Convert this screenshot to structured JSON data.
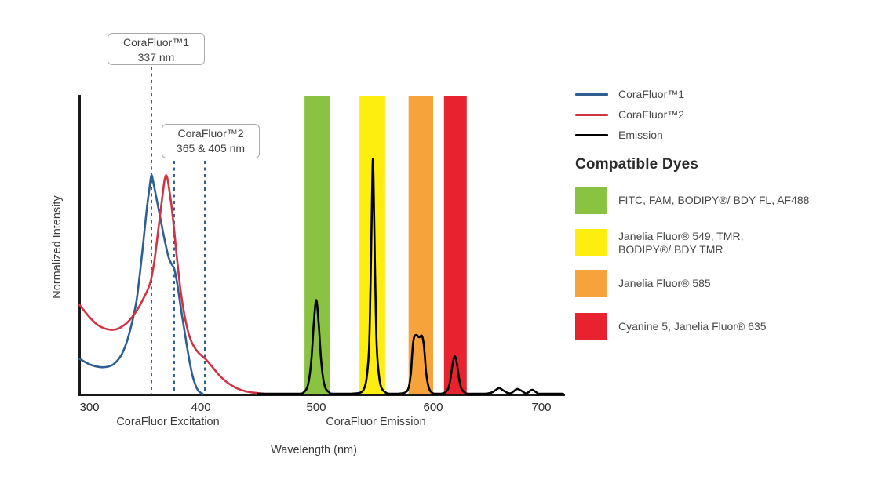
{
  "callouts": [
    {
      "line1": "CoraFluor™1",
      "line2": "337 nm"
    },
    {
      "line1": "CoraFluor™2",
      "line2": "365 & 405 nm"
    }
  ],
  "axis": {
    "y_label": "Normalized Intensity",
    "x_label": "Wavelength (nm)",
    "excitation_caption": "CoraFluor Excitation",
    "emission_caption": "CoraFluor Emission"
  },
  "legend": {
    "items": [
      {
        "label": "CoraFluor™1",
        "color": "#2e5f90"
      },
      {
        "label": "CoraFluor™2",
        "color": "#cf3344"
      },
      {
        "label": "Emission",
        "color": "#000000"
      }
    ]
  },
  "compatible_dyes": {
    "heading": "Compatible Dyes",
    "items": [
      {
        "color": "#8ac341",
        "line1": "FITC, FAM, BODIPY®/ BDY FL, AF488",
        "line2": ""
      },
      {
        "color": "#fdee10",
        "line1": "Janelia Fluor® 549, TMR,",
        "line2": "BODIPY®/ BDY TMR"
      },
      {
        "color": "#f7a33c",
        "line1": "Janelia Fluor® 585",
        "line2": ""
      },
      {
        "color": "#e8222e",
        "line1": "Cyanine 5, Janelia Fluor® 635",
        "line2": ""
      }
    ]
  },
  "chart_data": {
    "type": "line",
    "title": "CoraFluor excitation and emission spectra with compatible dye windows",
    "xlabel": "Wavelength (nm)",
    "ylabel": "Normalized Intensity",
    "x_ticks": [
      300,
      400,
      500,
      600,
      700
    ],
    "x_range_nm": [
      294,
      721
    ],
    "y_range": [
      0,
      1
    ],
    "grid": false,
    "legend_position": "right",
    "marker_lines": [
      {
        "nm": 337,
        "label": "CoraFluor™1 337 nm"
      },
      {
        "nm": 365,
        "label": "CoraFluor™2 365 nm"
      },
      {
        "nm": 405,
        "label": "CoraFluor™2 405 nm"
      }
    ],
    "marker_color": "#34628f",
    "bands": [
      {
        "name": "FITC, FAM, BODIPY/ BDY FL, AF488 window",
        "nm": [
          490,
          512
        ],
        "color": "#8ac341"
      },
      {
        "name": "Janelia Fluor 549, TMR, BODIPY/ BDY TMR window",
        "nm": [
          537,
          559
        ],
        "color": "#fdee10"
      },
      {
        "name": "Janelia Fluor 585 window",
        "nm": [
          579,
          600
        ],
        "color": "#f7a33c"
      },
      {
        "name": "Cyanine 5, Janelia Fluor 635 window",
        "nm": [
          610,
          631
        ],
        "color": "#e8222e"
      }
    ],
    "series": [
      {
        "name": "CoraFluor1-excitation",
        "color": "#2e5f90",
        "points": [
          [
            294,
            0.118
          ],
          [
            300,
            0.099
          ],
          [
            306,
            0.09
          ],
          [
            311,
            0.091
          ],
          [
            315,
            0.102
          ],
          [
            319,
            0.13
          ],
          [
            322,
            0.17
          ],
          [
            325,
            0.23
          ],
          [
            328,
            0.31
          ],
          [
            330,
            0.4
          ],
          [
            332,
            0.5
          ],
          [
            334,
            0.61
          ],
          [
            336,
            0.7
          ],
          [
            337,
            0.735
          ],
          [
            339,
            0.715
          ],
          [
            343,
            0.66
          ],
          [
            348,
            0.59
          ],
          [
            353,
            0.52
          ],
          [
            358,
            0.46
          ],
          [
            362,
            0.435
          ],
          [
            365,
            0.42
          ],
          [
            369,
            0.37
          ],
          [
            373,
            0.3
          ],
          [
            377,
            0.235
          ],
          [
            381,
            0.17
          ],
          [
            385,
            0.11
          ],
          [
            389,
            0.06
          ],
          [
            393,
            0.028
          ],
          [
            396,
            0.012
          ],
          [
            399,
            0.004
          ],
          [
            402,
            0
          ]
        ]
      },
      {
        "name": "CoraFluor2-excitation",
        "color": "#cf3344",
        "points": [
          [
            294,
            0.3
          ],
          [
            300,
            0.258
          ],
          [
            305,
            0.231
          ],
          [
            310,
            0.218
          ],
          [
            314,
            0.215
          ],
          [
            318,
            0.221
          ],
          [
            323,
            0.242
          ],
          [
            328,
            0.278
          ],
          [
            332,
            0.318
          ],
          [
            336,
            0.368
          ],
          [
            340,
            0.435
          ],
          [
            344,
            0.52
          ],
          [
            348,
            0.61
          ],
          [
            351,
            0.675
          ],
          [
            353,
            0.717
          ],
          [
            355,
            0.735
          ],
          [
            357,
            0.72
          ],
          [
            359,
            0.685
          ],
          [
            362,
            0.625
          ],
          [
            365,
            0.55
          ],
          [
            368,
            0.47
          ],
          [
            371,
            0.4
          ],
          [
            374,
            0.335
          ],
          [
            378,
            0.27
          ],
          [
            382,
            0.22
          ],
          [
            386,
            0.185
          ],
          [
            391,
            0.158
          ],
          [
            396,
            0.14
          ],
          [
            401,
            0.128
          ],
          [
            406,
            0.115
          ],
          [
            411,
            0.092
          ],
          [
            416,
            0.068
          ],
          [
            421,
            0.048
          ],
          [
            427,
            0.03
          ],
          [
            433,
            0.017
          ],
          [
            440,
            0.008
          ],
          [
            448,
            0.003
          ],
          [
            456,
            0
          ]
        ]
      },
      {
        "name": "Emission",
        "color": "#000000",
        "points": [
          [
            450,
            0
          ],
          [
            470,
            0
          ],
          [
            486,
            0
          ],
          [
            489,
            0.004
          ],
          [
            492,
            0.018
          ],
          [
            494,
            0.05
          ],
          [
            496,
            0.12
          ],
          [
            498,
            0.24
          ],
          [
            500,
            0.315
          ],
          [
            502,
            0.24
          ],
          [
            504,
            0.12
          ],
          [
            506,
            0.05
          ],
          [
            508,
            0.018
          ],
          [
            511,
            0.005
          ],
          [
            514,
            0
          ],
          [
            530,
            0
          ],
          [
            538,
            0.004
          ],
          [
            541,
            0.018
          ],
          [
            543,
            0.05
          ],
          [
            545,
            0.14
          ],
          [
            546,
            0.27
          ],
          [
            547,
            0.48
          ],
          [
            548,
            0.72
          ],
          [
            548.5,
            0.79
          ],
          [
            549,
            0.72
          ],
          [
            550,
            0.48
          ],
          [
            551,
            0.27
          ],
          [
            552,
            0.14
          ],
          [
            554,
            0.05
          ],
          [
            556,
            0.018
          ],
          [
            559,
            0.005
          ],
          [
            562,
            0
          ],
          [
            570,
            0
          ],
          [
            576,
            0.004
          ],
          [
            579,
            0.02
          ],
          [
            581,
            0.07
          ],
          [
            582,
            0.13
          ],
          [
            583,
            0.175
          ],
          [
            584,
            0.193
          ],
          [
            586,
            0.197
          ],
          [
            588,
            0.19
          ],
          [
            590,
            0.196
          ],
          [
            591,
            0.188
          ],
          [
            592,
            0.165
          ],
          [
            593,
            0.12
          ],
          [
            594,
            0.07
          ],
          [
            596,
            0.025
          ],
          [
            598,
            0.007
          ],
          [
            601,
            0
          ],
          [
            607,
            0
          ],
          [
            611,
            0.004
          ],
          [
            614,
            0.018
          ],
          [
            616,
            0.05
          ],
          [
            618,
            0.1
          ],
          [
            620,
            0.126
          ],
          [
            622,
            0.1
          ],
          [
            624,
            0.05
          ],
          [
            626,
            0.018
          ],
          [
            629,
            0.005
          ],
          [
            632,
            0
          ],
          [
            648,
            0
          ],
          [
            654,
            0.004
          ],
          [
            658,
            0.013
          ],
          [
            661,
            0.019
          ],
          [
            664,
            0.013
          ],
          [
            668,
            0.004
          ],
          [
            671,
            0.001
          ],
          [
            673,
            0.004
          ],
          [
            676,
            0.013
          ],
          [
            678,
            0.016
          ],
          [
            681,
            0.011
          ],
          [
            684,
            0.004
          ],
          [
            686,
            0.001
          ],
          [
            688,
            0.005
          ],
          [
            690,
            0.011
          ],
          [
            692,
            0.013
          ],
          [
            694,
            0.008
          ],
          [
            696,
            0.003
          ],
          [
            698,
            0
          ],
          [
            712,
            0
          ],
          [
            720,
            0
          ]
        ]
      }
    ]
  }
}
